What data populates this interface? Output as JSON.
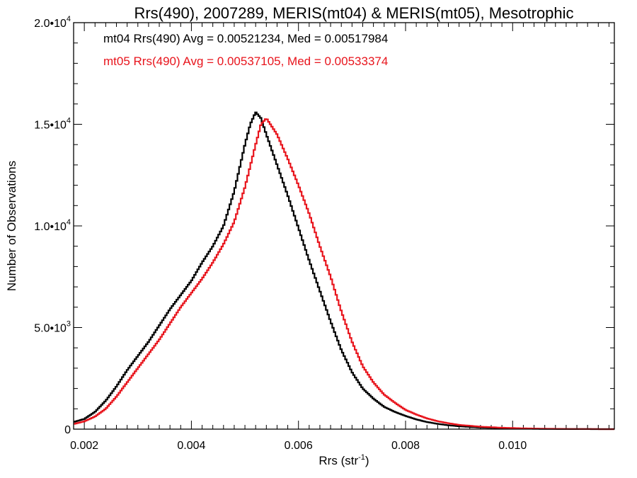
{
  "chart_data": {
    "type": "line",
    "title": "Rrs(490), 2007289, MERIS(mt04) & MERIS(mt05), Mesotrophic",
    "xlabel": "Rrs (str",
    "xlabel_sup": "-1",
    "xlabel_end": ")",
    "ylabel": "Number of Observations",
    "xlim": [
      0.0018,
      0.0119
    ],
    "ylim": [
      0,
      20000
    ],
    "x_ticks": [
      {
        "value": 0.002,
        "label": "0.002"
      },
      {
        "value": 0.004,
        "label": "0.004"
      },
      {
        "value": 0.006,
        "label": "0.006"
      },
      {
        "value": 0.008,
        "label": "0.008"
      },
      {
        "value": 0.01,
        "label": "0.010"
      }
    ],
    "y_ticks": [
      {
        "value": 0,
        "mant": "0",
        "exp": ""
      },
      {
        "value": 5000,
        "mant": "5.0•10",
        "exp": "3"
      },
      {
        "value": 10000,
        "mant": "1.0•10",
        "exp": "4"
      },
      {
        "value": 15000,
        "mant": "1.5•10",
        "exp": "4"
      },
      {
        "value": 20000,
        "mant": "2.0•10",
        "exp": "4"
      }
    ],
    "legend_position": "top-left",
    "series": [
      {
        "name": "mt04 Rrs(490) Avg = 0.00521234, Med = 0.00517984",
        "color": "#000000",
        "points": [
          [
            0.0018,
            350
          ],
          [
            0.002,
            500
          ],
          [
            0.0022,
            850
          ],
          [
            0.0024,
            1400
          ],
          [
            0.0026,
            2100
          ],
          [
            0.0028,
            2900
          ],
          [
            0.003,
            3600
          ],
          [
            0.0032,
            4300
          ],
          [
            0.0034,
            5100
          ],
          [
            0.0036,
            5900
          ],
          [
            0.0038,
            6600
          ],
          [
            0.004,
            7300
          ],
          [
            0.0042,
            8200
          ],
          [
            0.0044,
            9000
          ],
          [
            0.0046,
            10000
          ],
          [
            0.0048,
            11700
          ],
          [
            0.005,
            14000
          ],
          [
            0.0051,
            15000
          ],
          [
            0.0052,
            15600
          ],
          [
            0.0053,
            15300
          ],
          [
            0.0054,
            14500
          ],
          [
            0.0056,
            13000
          ],
          [
            0.0058,
            11500
          ],
          [
            0.006,
            9900
          ],
          [
            0.0062,
            8300
          ],
          [
            0.0064,
            6800
          ],
          [
            0.0066,
            5300
          ],
          [
            0.0068,
            3900
          ],
          [
            0.007,
            2800
          ],
          [
            0.0072,
            2000
          ],
          [
            0.0074,
            1500
          ],
          [
            0.0076,
            1100
          ],
          [
            0.0078,
            850
          ],
          [
            0.008,
            650
          ],
          [
            0.0082,
            480
          ],
          [
            0.0084,
            350
          ],
          [
            0.0086,
            260
          ],
          [
            0.0088,
            190
          ],
          [
            0.009,
            140
          ],
          [
            0.0094,
            80
          ],
          [
            0.0098,
            45
          ],
          [
            0.0102,
            25
          ],
          [
            0.0106,
            12
          ],
          [
            0.011,
            6
          ],
          [
            0.0114,
            2
          ],
          [
            0.0119,
            0
          ]
        ]
      },
      {
        "name": "mt05 Rrs(490) Avg = 0.00537105, Med = 0.00533374",
        "color": "#e8141c",
        "points": [
          [
            0.0018,
            250
          ],
          [
            0.002,
            380
          ],
          [
            0.0022,
            620
          ],
          [
            0.0024,
            1000
          ],
          [
            0.0026,
            1600
          ],
          [
            0.0028,
            2300
          ],
          [
            0.003,
            3000
          ],
          [
            0.0032,
            3700
          ],
          [
            0.0034,
            4400
          ],
          [
            0.0036,
            5200
          ],
          [
            0.0038,
            6000
          ],
          [
            0.004,
            6700
          ],
          [
            0.0042,
            7400
          ],
          [
            0.0044,
            8200
          ],
          [
            0.0046,
            9100
          ],
          [
            0.0048,
            10200
          ],
          [
            0.005,
            11900
          ],
          [
            0.0052,
            14000
          ],
          [
            0.0053,
            15000
          ],
          [
            0.0054,
            15300
          ],
          [
            0.0055,
            14900
          ],
          [
            0.0056,
            14500
          ],
          [
            0.0058,
            13300
          ],
          [
            0.006,
            12000
          ],
          [
            0.0062,
            10600
          ],
          [
            0.0064,
            9000
          ],
          [
            0.0066,
            7500
          ],
          [
            0.0068,
            5800
          ],
          [
            0.007,
            4300
          ],
          [
            0.0072,
            3100
          ],
          [
            0.0074,
            2300
          ],
          [
            0.0076,
            1700
          ],
          [
            0.0078,
            1300
          ],
          [
            0.008,
            950
          ],
          [
            0.0082,
            720
          ],
          [
            0.0084,
            530
          ],
          [
            0.0086,
            390
          ],
          [
            0.0088,
            290
          ],
          [
            0.009,
            210
          ],
          [
            0.0094,
            120
          ],
          [
            0.0098,
            70
          ],
          [
            0.0102,
            40
          ],
          [
            0.0106,
            20
          ],
          [
            0.011,
            9
          ],
          [
            0.0114,
            3
          ],
          [
            0.0119,
            0
          ]
        ]
      }
    ]
  }
}
